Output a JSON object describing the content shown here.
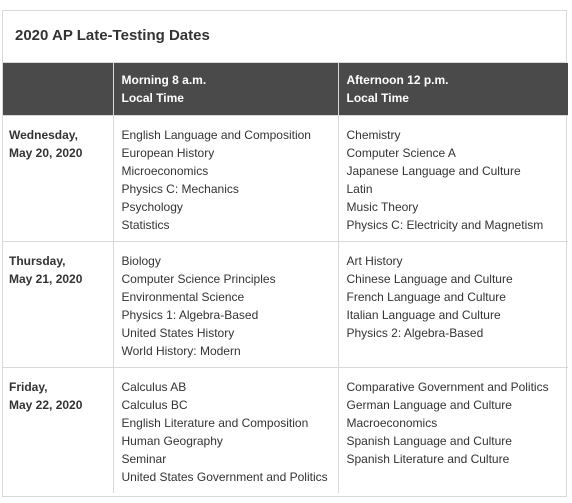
{
  "title": "2020 AP Late-Testing Dates",
  "headers": {
    "day": "",
    "morning_line1": "Morning 8 a.m.",
    "morning_line2": "Local Time",
    "afternoon_line1": "Afternoon 12 p.m.",
    "afternoon_line2": "Local Time"
  },
  "rows": [
    {
      "day_line1": "Wednesday,",
      "day_line2": "May 20, 2020",
      "morning": [
        "English Language and Composition",
        "European History",
        "Microeconomics",
        "Physics C: Mechanics",
        "Psychology",
        "Statistics"
      ],
      "afternoon": [
        "Chemistry",
        "Computer Science A",
        "Japanese Language and Culture",
        "Latin",
        "Music Theory",
        "Physics C: Electricity and Magnetism"
      ]
    },
    {
      "day_line1": "Thursday,",
      "day_line2": "May 21, 2020",
      "morning": [
        "Biology",
        "Computer Science Principles",
        "Environmental Science",
        "Physics 1: Algebra-Based",
        "United States History",
        "World History: Modern"
      ],
      "afternoon": [
        "Art History",
        "Chinese Language and Culture",
        "French Language and Culture",
        "Italian Language and Culture",
        "Physics 2: Algebra-Based",
        ""
      ]
    },
    {
      "day_line1": "Friday,",
      "day_line2": "May 22, 2020",
      "morning": [
        "Calculus AB",
        "Calculus BC",
        "English Literature and Composition",
        "Human Geography",
        "Seminar",
        "United States Government and Politics"
      ],
      "afternoon": [
        "Comparative Government and Politics",
        "German Language and Culture",
        "Macroeconomics",
        "Spanish Language and Culture",
        "Spanish Literature and Culture",
        ""
      ]
    }
  ]
}
